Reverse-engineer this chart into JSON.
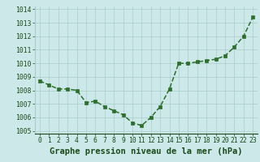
{
  "x": [
    0,
    1,
    2,
    3,
    4,
    5,
    6,
    7,
    8,
    9,
    10,
    11,
    12,
    13,
    14,
    15,
    16,
    17,
    18,
    19,
    20,
    21,
    22,
    23
  ],
  "y": [
    1008.7,
    1008.4,
    1008.1,
    1008.1,
    1008.0,
    1007.1,
    1007.2,
    1006.8,
    1006.5,
    1006.2,
    1005.6,
    1005.4,
    1006.0,
    1006.8,
    1008.1,
    1010.0,
    1010.0,
    1010.1,
    1010.2,
    1010.3,
    1010.55,
    1011.2,
    1012.0,
    1013.4
  ],
  "line_color": "#2d6e2d",
  "marker_color": "#2d6e2d",
  "bg_color": "#cce8e8",
  "grid_color": "#aacccc",
  "xlabel": "Graphe pression niveau de la mer (hPa)",
  "xlabel_color": "#1a4a1a",
  "tick_color": "#1a4a1a",
  "ylim": [
    1004.8,
    1014.2
  ],
  "yticks": [
    1005,
    1006,
    1007,
    1008,
    1009,
    1010,
    1011,
    1012,
    1013,
    1014
  ],
  "xticks": [
    0,
    1,
    2,
    3,
    4,
    5,
    6,
    7,
    8,
    9,
    10,
    11,
    12,
    13,
    14,
    15,
    16,
    17,
    18,
    19,
    20,
    21,
    22,
    23
  ],
  "tick_fontsize": 5.8,
  "xlabel_fontsize": 7.5,
  "linewidth": 1.1,
  "markersize": 2.2
}
